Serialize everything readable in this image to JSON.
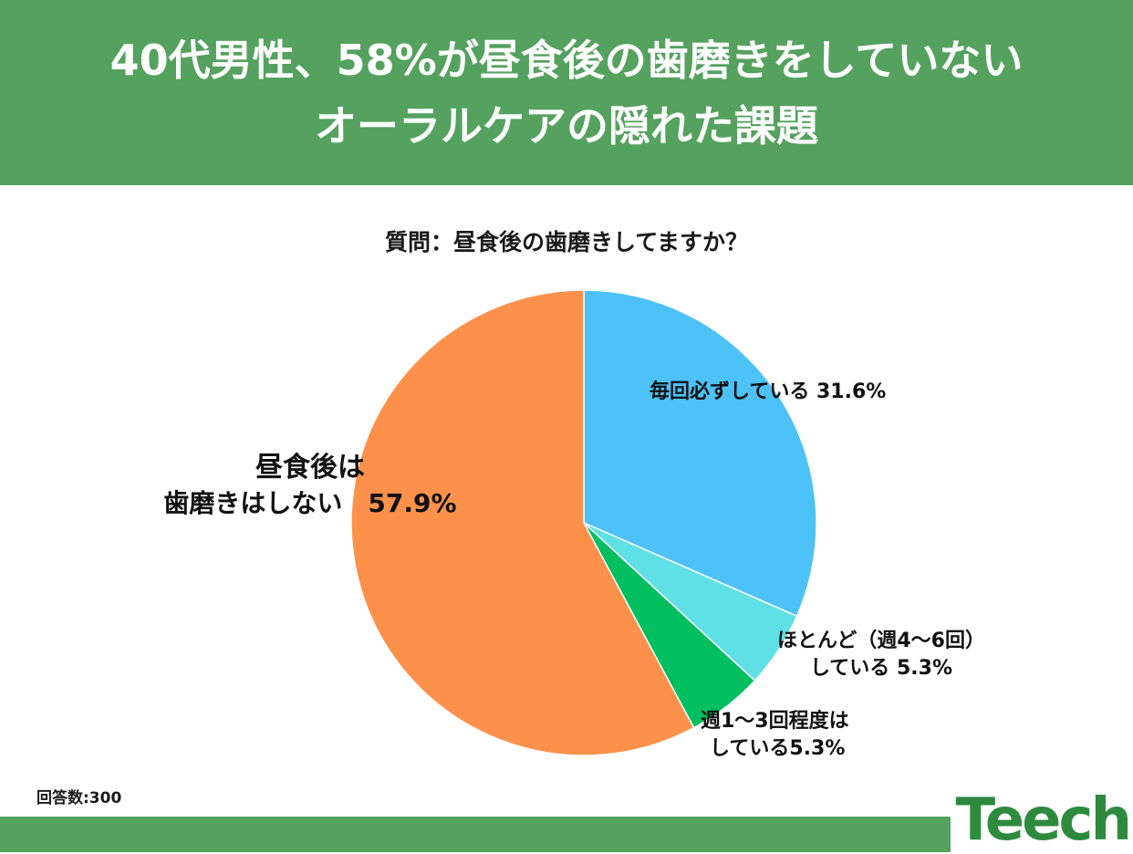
{
  "header": {
    "title_line1": "40代男性、58%が昼食後の歯磨きをしていない",
    "title_line2": "オーラルケアの隠れた課題"
  },
  "question": "質問：昼食後の歯磨きしてますか？",
  "footnote": "回答数:300",
  "logo": {
    "text": "Teech"
  },
  "colors": {
    "header_bg": "#54a25e",
    "slice_every_time": "#4cc2f8",
    "slice_mostly": "#5ee0e5",
    "slice_weekly": "#00bf60",
    "slice_not": "#fd914c"
  },
  "chart_data": {
    "type": "pie",
    "title": "質問：昼食後の歯磨きしてますか？",
    "slices": [
      {
        "label_lines": [
          "毎回必ずしている 31.6%"
        ],
        "value": 31.6,
        "color": "#4cc2f8"
      },
      {
        "label_lines": [
          "ほとんど（週4〜6回）",
          "している 5.3%"
        ],
        "value": 5.3,
        "color": "#5ee0e5"
      },
      {
        "label_lines": [
          "週1〜3回程度は",
          "している5.3%"
        ],
        "value": 5.3,
        "color": "#00bf60"
      },
      {
        "label_lines": [
          "昼食後は",
          "歯磨きはしない　57.9%"
        ],
        "value": 57.9,
        "color": "#fd914c"
      }
    ],
    "start": "top",
    "direction": "clockwise"
  }
}
